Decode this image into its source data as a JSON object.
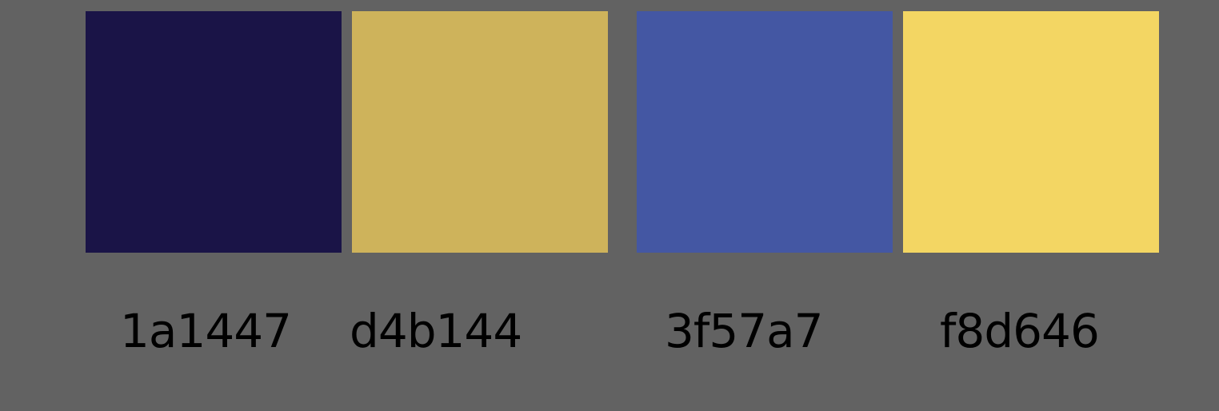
{
  "background": "#626262",
  "palette": [
    {
      "hex": "1a1447",
      "color": "#1a1447"
    },
    {
      "hex": "d4b144",
      "color": "#ceb35b"
    },
    {
      "hex": "3f57a7",
      "color": "#4457a3"
    },
    {
      "hex": "f8d646",
      "color": "#f3d663"
    }
  ]
}
